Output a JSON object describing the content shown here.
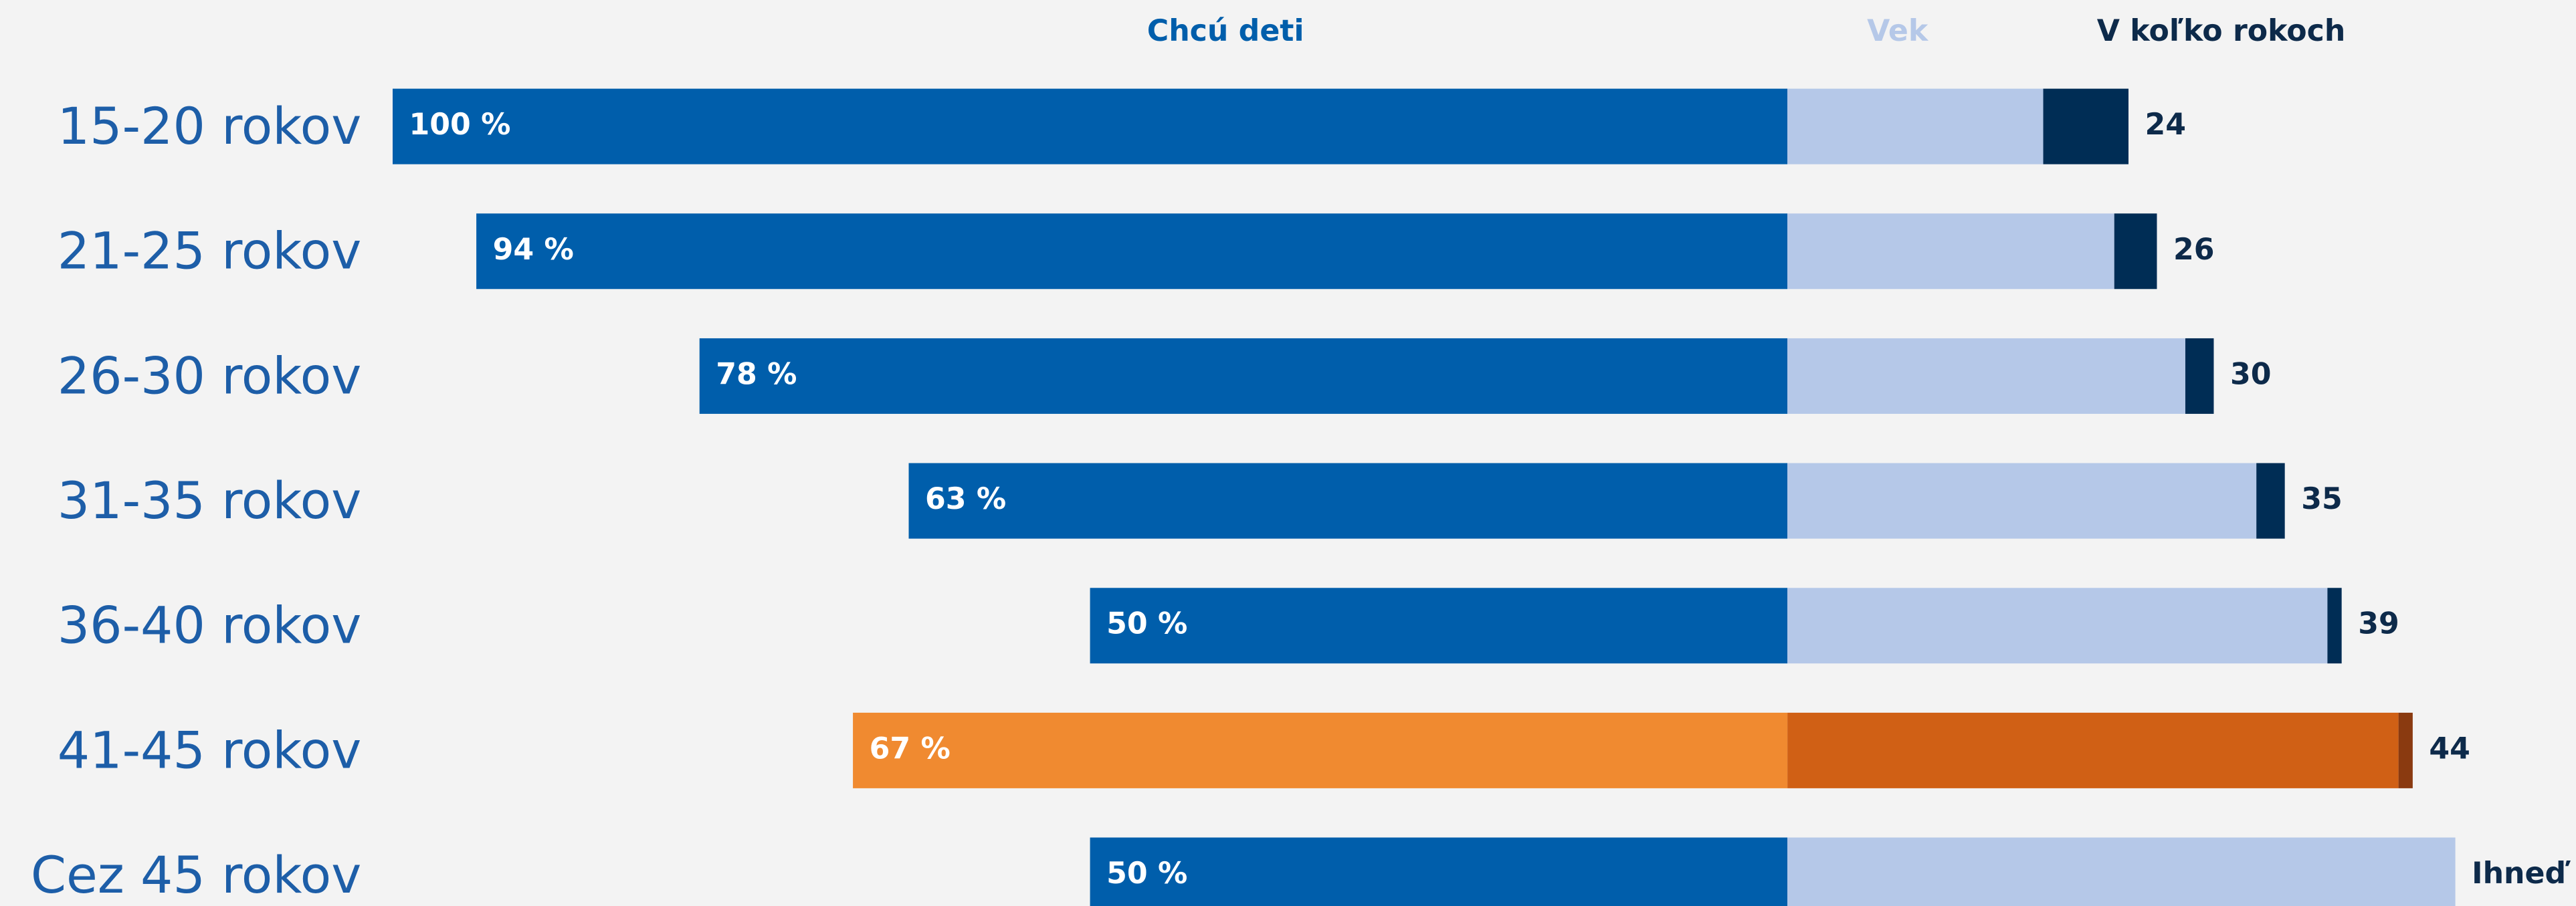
{
  "chart_data": {
    "type": "diverging-stacked-bar",
    "categories": [
      "15-20 rokov",
      "21-25 rokov",
      "26-30 rokov",
      "31-35 rokov",
      "36-40 rokov",
      "41-45 rokov",
      "Cez 45 rokov"
    ],
    "series": [
      {
        "name": "Chcú deti",
        "color": "#005eab",
        "highlight_color": "#f08a30",
        "values": [
          100,
          94,
          78,
          63,
          50,
          67,
          50
        ],
        "value_labels": [
          "100 %",
          "94 %",
          "78 %",
          "63 %",
          "50 %",
          "67 %",
          "50 %"
        ]
      },
      {
        "name": "Vek",
        "color": "#b5c8e8",
        "highlight_color": "#d06015",
        "values": [
          18,
          23,
          28,
          33,
          38,
          43,
          47
        ]
      },
      {
        "name": "V koľko rokoch",
        "color": "#002d55",
        "highlight_color": "#8a3a10",
        "values": [
          6,
          3,
          2,
          2,
          1,
          1,
          0
        ]
      }
    ],
    "end_labels": [
      24,
      26,
      30,
      35,
      39,
      44,
      "Ihneď"
    ],
    "highlight_index": 5
  }
}
